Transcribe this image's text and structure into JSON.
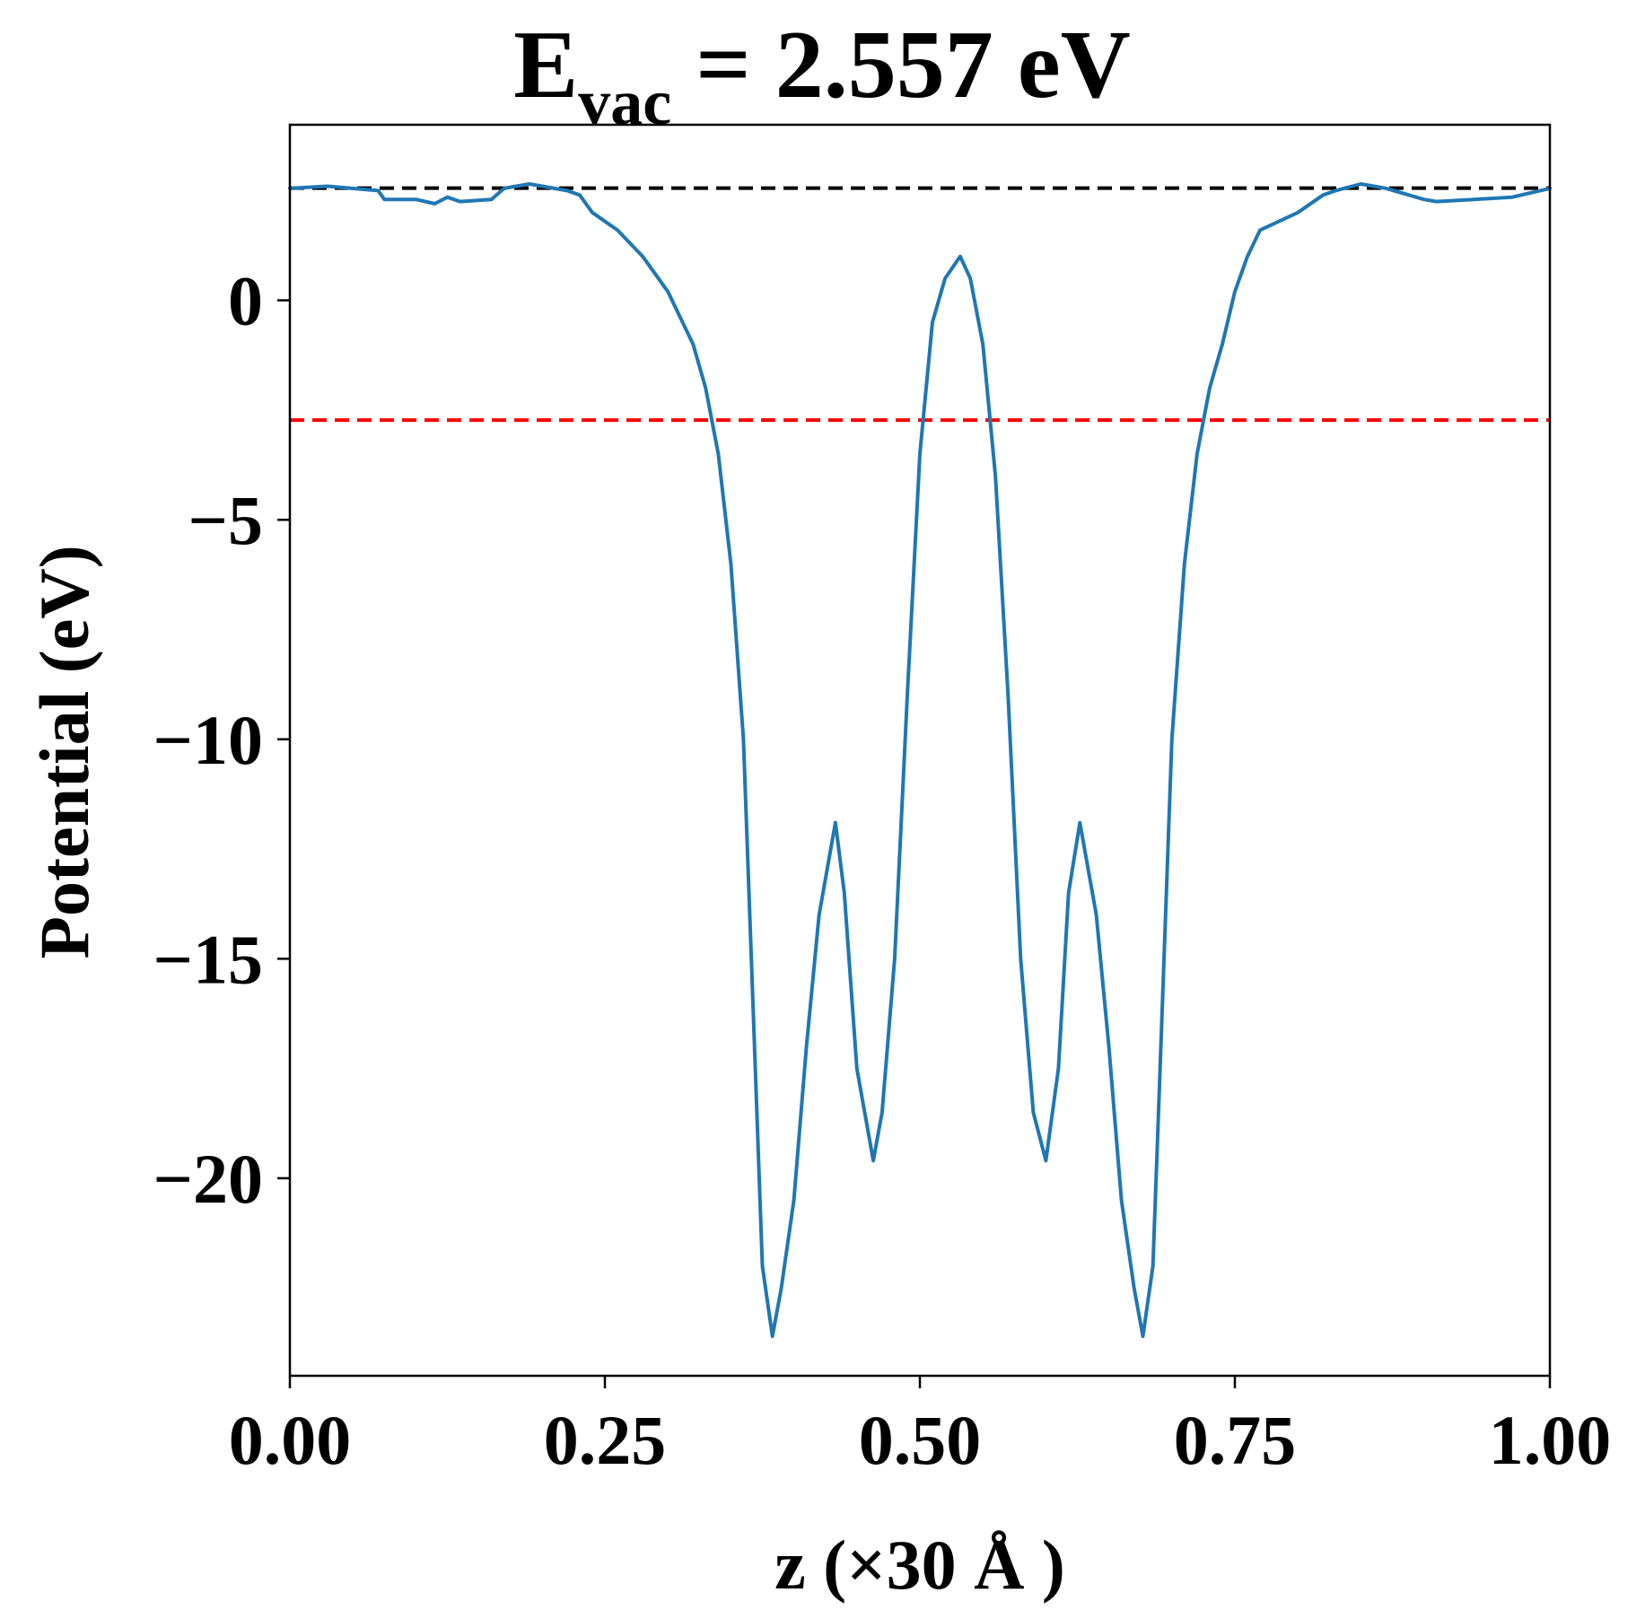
{
  "chart_data": {
    "type": "line",
    "title": {
      "main": "E",
      "subscript": "vac",
      "rest": " = 2.557 eV"
    },
    "xlabel": "z (×30 Å )",
    "ylabel": "Potential (eV)",
    "xlim": [
      0.0,
      1.0
    ],
    "ylim": [
      -24.5,
      4.0
    ],
    "x_ticks": [
      0.0,
      0.25,
      0.5,
      0.75,
      1.0
    ],
    "x_tick_labels": [
      "0.00",
      "0.25",
      "0.50",
      "0.75",
      "1.00"
    ],
    "y_ticks": [
      0,
      -5,
      -10,
      -15,
      -20
    ],
    "y_tick_labels": [
      "0",
      "−5",
      "−10",
      "−15",
      "−20"
    ],
    "grid": false,
    "colors": {
      "series": "#1f77b4",
      "vacuum_line": "#000000",
      "fermi_line": "#ff0000"
    },
    "reference_lines": [
      {
        "y": 2.557,
        "style": "dashed",
        "color": "#000000"
      },
      {
        "y": -2.73,
        "style": "dashed",
        "color": "#ff0000"
      }
    ],
    "series": [
      {
        "x": [
          0.0,
          0.03,
          0.07,
          0.075,
          0.1,
          0.115,
          0.125,
          0.135,
          0.16,
          0.17,
          0.19,
          0.22,
          0.23,
          0.24,
          0.26,
          0.28,
          0.3,
          0.32,
          0.33,
          0.34,
          0.35,
          0.36,
          0.37,
          0.375,
          0.383,
          0.39,
          0.4,
          0.41,
          0.42,
          0.433,
          0.44,
          0.45,
          0.463,
          0.47,
          0.48,
          0.49,
          0.5,
          0.51,
          0.52,
          0.532,
          0.54,
          0.55,
          0.56,
          0.57,
          0.58,
          0.59,
          0.6,
          0.61,
          0.618,
          0.627,
          0.64,
          0.65,
          0.66,
          0.67,
          0.677,
          0.685,
          0.69,
          0.7,
          0.71,
          0.72,
          0.73,
          0.74,
          0.75,
          0.76,
          0.77,
          0.8,
          0.82,
          0.83,
          0.85,
          0.87,
          0.9,
          0.91,
          0.94,
          0.97,
          1.0
        ],
        "y": [
          2.55,
          2.6,
          2.5,
          2.3,
          2.3,
          2.2,
          2.35,
          2.25,
          2.3,
          2.55,
          2.65,
          2.5,
          2.4,
          2.0,
          1.6,
          1.0,
          0.2,
          -1.0,
          -2.0,
          -3.5,
          -6.0,
          -10.0,
          -18.0,
          -22.0,
          -23.6,
          -22.5,
          -20.5,
          -17.0,
          -14.0,
          -11.9,
          -13.5,
          -17.5,
          -19.6,
          -18.5,
          -15.0,
          -9.0,
          -3.5,
          -0.5,
          0.5,
          1.0,
          0.5,
          -1.0,
          -4.0,
          -9.0,
          -15.0,
          -18.5,
          -19.6,
          -17.5,
          -13.5,
          -11.9,
          -14.0,
          -17.0,
          -20.5,
          -22.5,
          -23.6,
          -22.0,
          -18.0,
          -10.0,
          -6.0,
          -3.5,
          -2.0,
          -1.0,
          0.2,
          1.0,
          1.6,
          2.0,
          2.4,
          2.5,
          2.65,
          2.55,
          2.3,
          2.25,
          2.3,
          2.35,
          2.55
        ]
      }
    ]
  }
}
